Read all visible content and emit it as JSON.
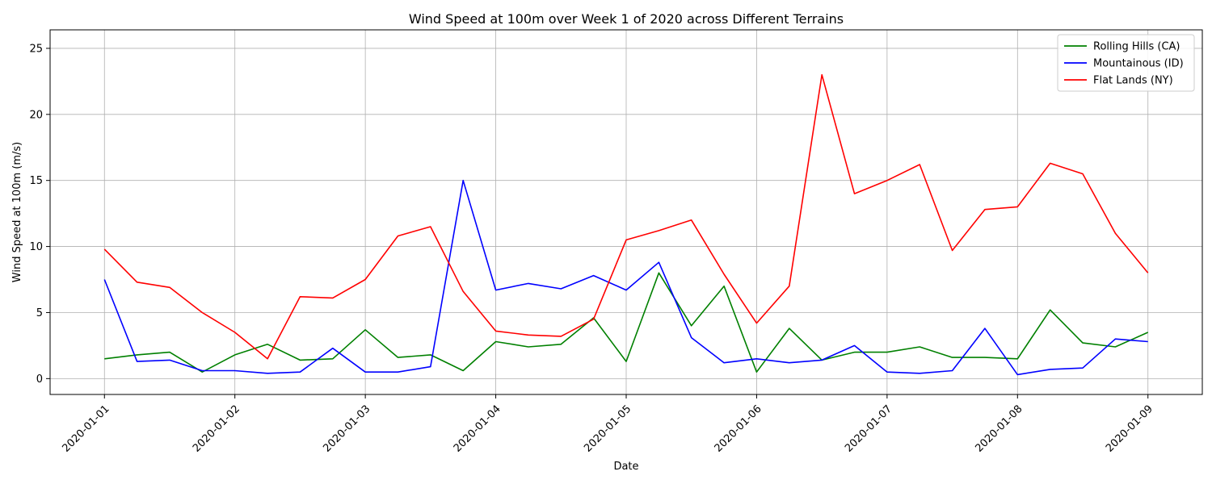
{
  "chart_data": {
    "type": "line",
    "title": "Wind Speed at 100m over Week 1 of 2020 across Different Terrains",
    "xlabel": "Date",
    "ylabel": "Wind Speed at 100m (m/s)",
    "x_ticks": [
      "2020-01-01",
      "2020-01-02",
      "2020-01-03",
      "2020-01-04",
      "2020-01-05",
      "2020-01-06",
      "2020-01-07",
      "2020-01-08",
      "2020-01-09"
    ],
    "xlim": [
      "2019-12-31T14:00",
      "2020-01-09T10:00"
    ],
    "y_ticks": [
      0,
      5,
      10,
      15,
      20,
      25
    ],
    "ylim": [
      -1.2,
      26.4
    ],
    "grid": true,
    "legend_position": "top-right",
    "x": [
      "2020-01-01T00:00",
      "2020-01-01T06:00",
      "2020-01-01T12:00",
      "2020-01-01T18:00",
      "2020-01-02T00:00",
      "2020-01-02T06:00",
      "2020-01-02T12:00",
      "2020-01-02T18:00",
      "2020-01-03T00:00",
      "2020-01-03T06:00",
      "2020-01-03T12:00",
      "2020-01-03T18:00",
      "2020-01-04T00:00",
      "2020-01-04T06:00",
      "2020-01-04T12:00",
      "2020-01-04T18:00",
      "2020-01-05T00:00",
      "2020-01-05T06:00",
      "2020-01-05T12:00",
      "2020-01-05T18:00",
      "2020-01-06T00:00",
      "2020-01-06T06:00",
      "2020-01-06T12:00",
      "2020-01-06T18:00",
      "2020-01-07T00:00",
      "2020-01-07T06:00",
      "2020-01-07T12:00",
      "2020-01-07T18:00",
      "2020-01-08T00:00",
      "2020-01-08T06:00",
      "2020-01-08T12:00",
      "2020-01-08T18:00",
      "2020-01-09T00:00"
    ],
    "series": [
      {
        "name": "Rolling Hills (CA)",
        "color": "#008000",
        "values": [
          1.5,
          1.8,
          2.0,
          0.5,
          1.8,
          2.6,
          1.4,
          1.5,
          3.7,
          1.6,
          1.8,
          0.6,
          2.8,
          2.4,
          2.6,
          4.6,
          1.3,
          8.0,
          4.0,
          7.0,
          0.5,
          3.8,
          1.4,
          2.0,
          2.0,
          2.4,
          1.6,
          1.6,
          1.5,
          5.2,
          2.7,
          2.4,
          3.5
        ]
      },
      {
        "name": "Mountainous (ID)",
        "color": "#0000ff",
        "values": [
          7.5,
          1.3,
          1.4,
          0.6,
          0.6,
          0.4,
          0.5,
          2.3,
          0.5,
          0.5,
          0.9,
          15.0,
          6.7,
          7.2,
          6.8,
          7.8,
          6.7,
          8.8,
          3.1,
          1.2,
          1.5,
          1.2,
          1.4,
          2.5,
          0.5,
          0.4,
          0.6,
          3.8,
          0.3,
          0.7,
          0.8,
          3.0,
          2.8
        ]
      },
      {
        "name": "Flat Lands (NY)",
        "color": "#ff0000",
        "values": [
          9.8,
          7.3,
          6.9,
          5.0,
          3.5,
          1.5,
          6.2,
          6.1,
          7.5,
          10.8,
          11.5,
          6.6,
          3.6,
          3.3,
          3.2,
          4.5,
          10.5,
          11.2,
          12.0,
          7.9,
          4.2,
          7.0,
          23.0,
          14.0,
          15.0,
          16.2,
          9.7,
          12.8,
          13.0,
          16.3,
          15.5,
          11.0,
          8.0
        ]
      }
    ]
  }
}
